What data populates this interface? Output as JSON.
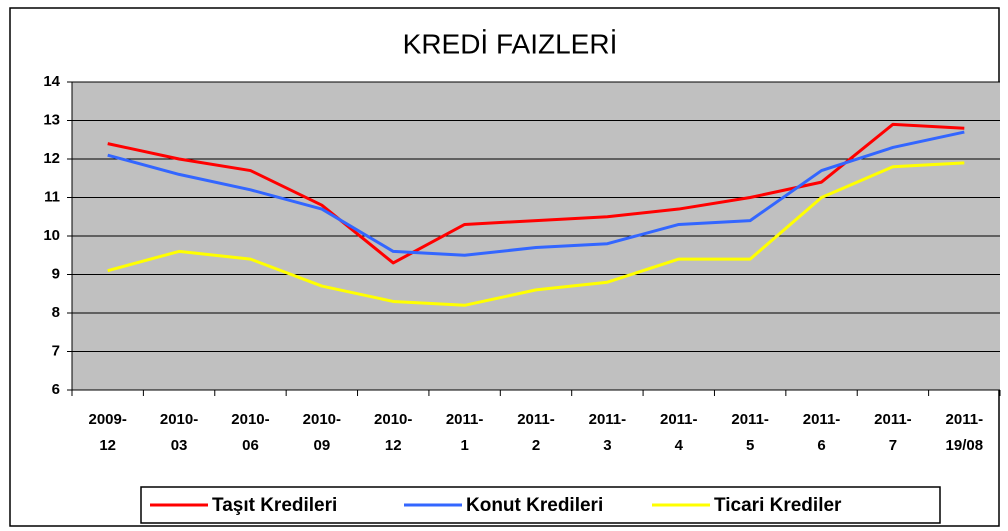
{
  "chart_data": {
    "type": "line",
    "title": "KREDİ FAIZLERİ",
    "categories": [
      [
        "2009-",
        "12"
      ],
      [
        "2010-",
        "03"
      ],
      [
        "2010-",
        "06"
      ],
      [
        "2010-",
        "09"
      ],
      [
        "2010-",
        "12"
      ],
      [
        "2011-",
        "1"
      ],
      [
        "2011-",
        "2"
      ],
      [
        "2011-",
        "3"
      ],
      [
        "2011-",
        "4"
      ],
      [
        "2011-",
        "5"
      ],
      [
        "2011-",
        "6"
      ],
      [
        "2011-",
        "7"
      ],
      [
        "2011-",
        "19/08"
      ]
    ],
    "series": [
      {
        "name": "Taşıt Kredileri",
        "color": "#ff0000",
        "values": [
          12.4,
          12.0,
          11.7,
          10.8,
          9.3,
          10.3,
          10.4,
          10.5,
          10.7,
          11.0,
          11.4,
          12.9,
          12.8
        ]
      },
      {
        "name": "Konut Kredileri",
        "color": "#3366ff",
        "values": [
          12.1,
          11.6,
          11.2,
          10.7,
          9.6,
          9.5,
          9.7,
          9.8,
          10.3,
          10.4,
          11.7,
          12.3,
          12.7
        ]
      },
      {
        "name": "Ticari Krediler",
        "color": "#ffff00",
        "values": [
          9.1,
          9.6,
          9.4,
          8.7,
          8.3,
          8.2,
          8.6,
          8.8,
          9.4,
          9.4,
          11.0,
          11.8,
          11.9
        ]
      }
    ],
    "ylim": [
      6,
      14
    ],
    "yticks": [
      6,
      7,
      8,
      9,
      10,
      11,
      12,
      13,
      14
    ],
    "grid": true,
    "legend": "bottom"
  }
}
